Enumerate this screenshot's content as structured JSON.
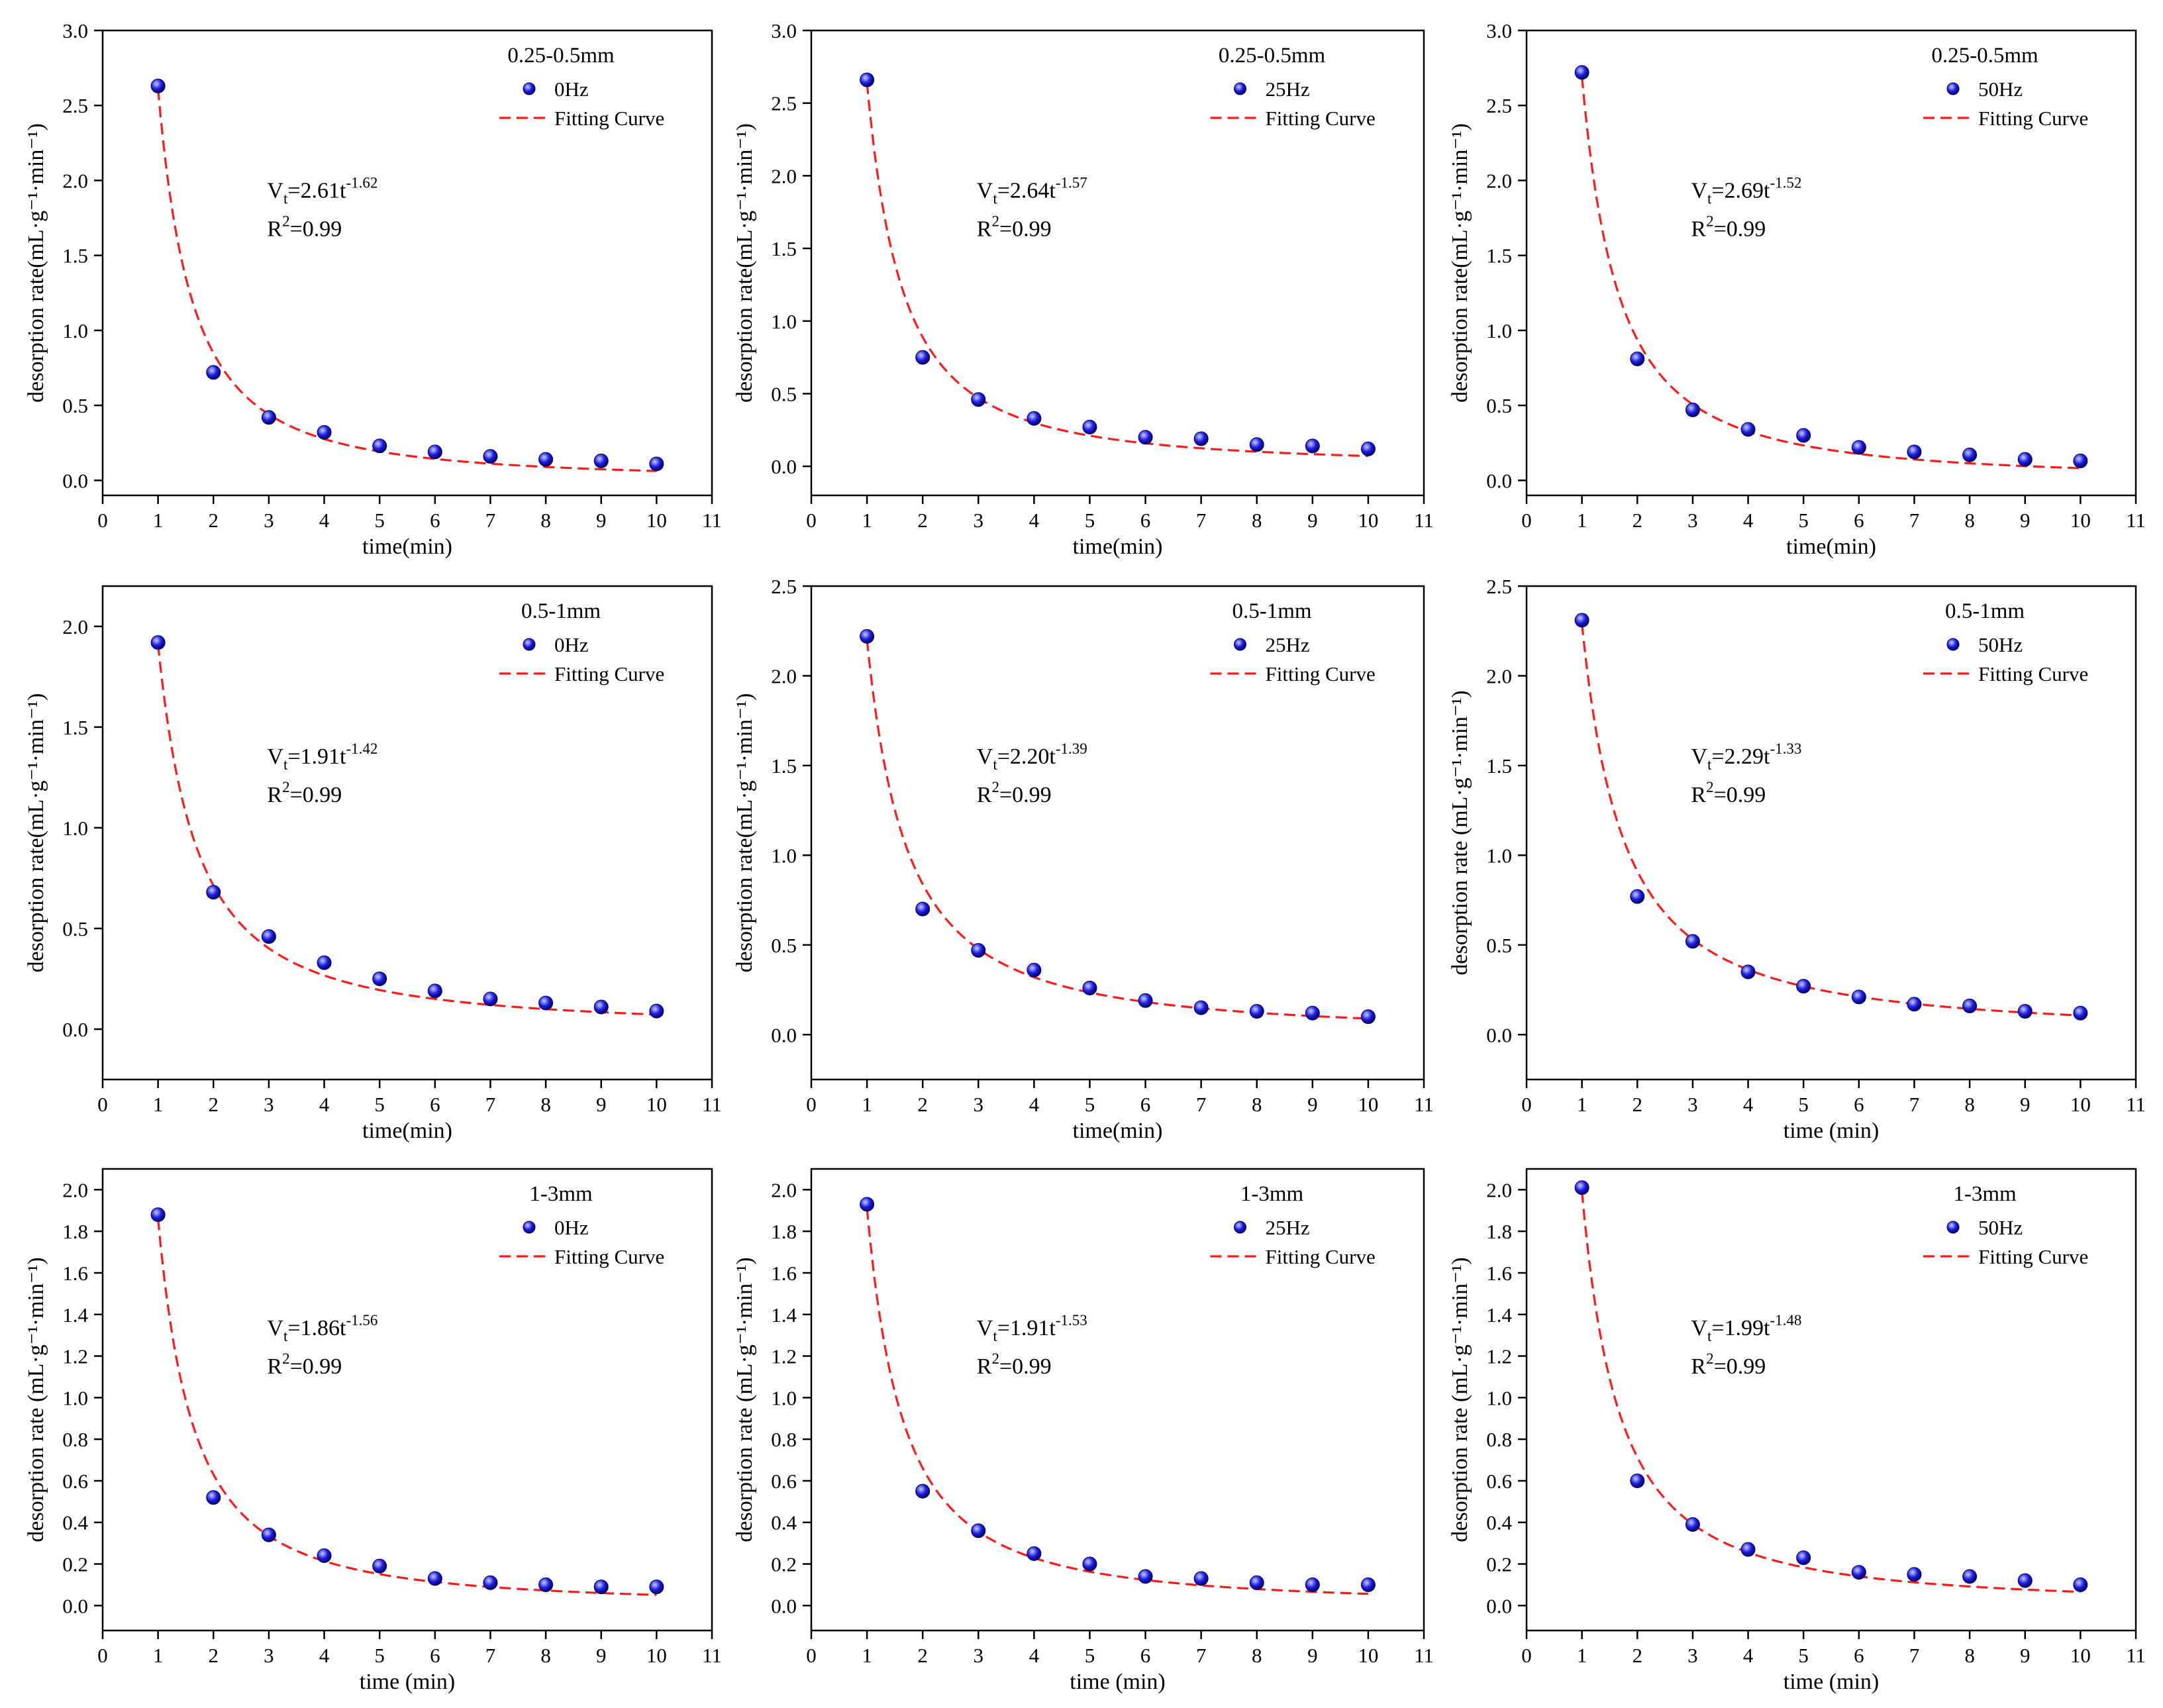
{
  "figure": {
    "colors": {
      "marker": "#1f1fe0",
      "marker_highlight": "#c8d0ff",
      "fit": "#ff1a1a",
      "axis": "#000000"
    }
  },
  "chart_data": [
    {
      "type": "scatter",
      "panel": "a1",
      "size_class": "0.25-0.5mm",
      "frequency": "0Hz",
      "xlabel": "time(min)",
      "ylabel": "desorption rate(mL·g⁻¹·min⁻¹)",
      "xlim": [
        0,
        11
      ],
      "ylim": [
        -0.1,
        3.0
      ],
      "xticks": [
        "0",
        "1",
        "2",
        "3",
        "4",
        "5",
        "6",
        "7",
        "8",
        "9",
        "10",
        "11"
      ],
      "yticks": [
        "0.0",
        "0.5",
        "1.0",
        "1.5",
        "2.0",
        "2.5",
        "3.0"
      ],
      "legend": {
        "title": "0.25-0.5mm",
        "marker_label": "0Hz",
        "line_label": "Fitting Curve"
      },
      "x": [
        1,
        2,
        3,
        4,
        5,
        6,
        7,
        8,
        9,
        10
      ],
      "y": [
        2.63,
        0.72,
        0.42,
        0.32,
        0.23,
        0.19,
        0.16,
        0.14,
        0.13,
        0.11
      ],
      "fit": {
        "a": 2.61,
        "b": 1.62,
        "equation_coef": "=2.61t",
        "equation_exp": "-1.62",
        "r2_value": "=0.99"
      }
    },
    {
      "type": "scatter",
      "panel": "a2",
      "size_class": "0.25-0.5mm",
      "frequency": "25Hz",
      "xlabel": "time(min)",
      "ylabel": "desorption rate(mL·g⁻¹·min⁻¹)",
      "xlim": [
        0,
        11
      ],
      "ylim": [
        -0.2,
        3.0
      ],
      "xticks": [
        "0",
        "1",
        "2",
        "3",
        "4",
        "5",
        "6",
        "7",
        "8",
        "9",
        "10",
        "11"
      ],
      "yticks": [
        "0.0",
        "0.5",
        "1.0",
        "1.5",
        "2.0",
        "2.5",
        "3.0"
      ],
      "legend": {
        "title": "0.25-0.5mm",
        "marker_label": "25Hz",
        "line_label": "Fitting Curve"
      },
      "x": [
        1,
        2,
        3,
        4,
        5,
        6,
        7,
        8,
        9,
        10
      ],
      "y": [
        2.66,
        0.75,
        0.46,
        0.33,
        0.27,
        0.2,
        0.19,
        0.15,
        0.14,
        0.12
      ],
      "fit": {
        "a": 2.64,
        "b": 1.57,
        "equation_coef": "=2.64t",
        "equation_exp": "-1.57",
        "r2_value": "=0.99"
      }
    },
    {
      "type": "scatter",
      "panel": "a3",
      "size_class": "0.25-0.5mm",
      "frequency": "50Hz",
      "xlabel": "time(min)",
      "ylabel": "desorption rate(mL·g⁻¹·min⁻¹)",
      "xlim": [
        0,
        11
      ],
      "ylim": [
        -0.1,
        3.0
      ],
      "xticks": [
        "0",
        "1",
        "2",
        "3",
        "4",
        "5",
        "6",
        "7",
        "8",
        "9",
        "10",
        "11"
      ],
      "yticks": [
        "0.0",
        "0.5",
        "1.0",
        "1.5",
        "2.0",
        "2.5",
        "3.0"
      ],
      "legend": {
        "title": "0.25-0.5mm",
        "marker_label": "50Hz",
        "line_label": "Fitting Curve"
      },
      "x": [
        1,
        2,
        3,
        4,
        5,
        6,
        7,
        8,
        9,
        10
      ],
      "y": [
        2.72,
        0.81,
        0.47,
        0.34,
        0.3,
        0.22,
        0.19,
        0.17,
        0.14,
        0.13
      ],
      "fit": {
        "a": 2.69,
        "b": 1.52,
        "equation_coef": "=2.69t",
        "equation_exp": "-1.52",
        "r2_value": "=0.99"
      }
    },
    {
      "type": "scatter",
      "panel": "b1",
      "size_class": "0.5-1mm",
      "frequency": "0Hz",
      "xlabel": "time(min)",
      "ylabel": "desorption rate(mL·g⁻¹·min⁻¹)",
      "xlim": [
        0,
        11
      ],
      "ylim": [
        -0.25,
        2.2
      ],
      "xticks": [
        "0",
        "1",
        "2",
        "3",
        "4",
        "5",
        "6",
        "7",
        "8",
        "9",
        "10",
        "11"
      ],
      "yticks": [
        "0.0",
        "0.5",
        "1.0",
        "1.5",
        "2.0"
      ],
      "legend": {
        "title": "0.5-1mm",
        "marker_label": "0Hz",
        "line_label": "Fitting Curve"
      },
      "x": [
        1,
        2,
        3,
        4,
        5,
        6,
        7,
        8,
        9,
        10
      ],
      "y": [
        1.92,
        0.68,
        0.46,
        0.33,
        0.25,
        0.19,
        0.15,
        0.13,
        0.11,
        0.09
      ],
      "fit": {
        "a": 1.91,
        "b": 1.42,
        "equation_coef": "=1.91t",
        "equation_exp": "-1.42",
        "r2_value": "=0.99"
      }
    },
    {
      "type": "scatter",
      "panel": "b2",
      "size_class": "0.5-1mm",
      "frequency": "25Hz",
      "xlabel": "time(min)",
      "ylabel": "desorption rate(mL·g⁻¹·min⁻¹)",
      "xlim": [
        0,
        11
      ],
      "ylim": [
        -0.25,
        2.5
      ],
      "xticks": [
        "0",
        "1",
        "2",
        "3",
        "4",
        "5",
        "6",
        "7",
        "8",
        "9",
        "10",
        "11"
      ],
      "yticks": [
        "0.0",
        "0.5",
        "1.0",
        "1.5",
        "2.0",
        "2.5"
      ],
      "legend": {
        "title": "0.5-1mm",
        "marker_label": "25Hz",
        "line_label": "Fitting Curve"
      },
      "x": [
        1,
        2,
        3,
        4,
        5,
        6,
        7,
        8,
        9,
        10
      ],
      "y": [
        2.22,
        0.7,
        0.47,
        0.36,
        0.26,
        0.19,
        0.15,
        0.13,
        0.12,
        0.1
      ],
      "fit": {
        "a": 2.2,
        "b": 1.39,
        "equation_coef": "=2.20t",
        "equation_exp": "-1.39",
        "r2_value": "=0.99"
      }
    },
    {
      "type": "scatter",
      "panel": "b3",
      "size_class": "0.5-1mm",
      "frequency": "50Hz",
      "xlabel": "time (min)",
      "ylabel": "desorption rate (mL·g⁻¹·min⁻¹)",
      "xlim": [
        0,
        11
      ],
      "ylim": [
        -0.25,
        2.5
      ],
      "xticks": [
        "0",
        "1",
        "2",
        "3",
        "4",
        "5",
        "6",
        "7",
        "8",
        "9",
        "10",
        "11"
      ],
      "yticks": [
        "0.0",
        "0.5",
        "1.0",
        "1.5",
        "2.0",
        "2.5"
      ],
      "legend": {
        "title": "0.5-1mm",
        "marker_label": "50Hz",
        "line_label": "Fitting Curve"
      },
      "x": [
        1,
        2,
        3,
        4,
        5,
        6,
        7,
        8,
        9,
        10
      ],
      "y": [
        2.31,
        0.77,
        0.52,
        0.35,
        0.27,
        0.21,
        0.17,
        0.16,
        0.13,
        0.12
      ],
      "fit": {
        "a": 2.29,
        "b": 1.33,
        "equation_coef": "=2.29t",
        "equation_exp": "-1.33",
        "r2_value": "=0.99"
      }
    },
    {
      "type": "scatter",
      "panel": "c1",
      "size_class": "1-3mm",
      "frequency": "0Hz",
      "xlabel": "time (min)",
      "ylabel": "desorption rate (mL·g⁻¹·min⁻¹)",
      "xlim": [
        0,
        11
      ],
      "ylim": [
        -0.12,
        2.1
      ],
      "xticks": [
        "0",
        "1",
        "2",
        "3",
        "4",
        "5",
        "6",
        "7",
        "8",
        "9",
        "10",
        "11"
      ],
      "yticks": [
        "0.0",
        "0.2",
        "0.4",
        "0.6",
        "0.8",
        "1.0",
        "1.2",
        "1.4",
        "1.6",
        "1.8",
        "2.0"
      ],
      "legend": {
        "title": "1-3mm",
        "marker_label": "0Hz",
        "line_label": "Fitting Curve"
      },
      "x": [
        1,
        2,
        3,
        4,
        5,
        6,
        7,
        8,
        9,
        10
      ],
      "y": [
        1.88,
        0.52,
        0.34,
        0.24,
        0.19,
        0.13,
        0.11,
        0.1,
        0.09,
        0.09
      ],
      "fit": {
        "a": 1.86,
        "b": 1.56,
        "equation_coef": "=1.86t",
        "equation_exp": "-1.56",
        "r2_value": "=0.99"
      }
    },
    {
      "type": "scatter",
      "panel": "c2",
      "size_class": "1-3mm",
      "frequency": "25Hz",
      "xlabel": "time (min)",
      "ylabel": "desorption rate (mL·g⁻¹·min⁻¹)",
      "xlim": [
        0,
        11
      ],
      "ylim": [
        -0.12,
        2.1
      ],
      "xticks": [
        "0",
        "1",
        "2",
        "3",
        "4",
        "5",
        "6",
        "7",
        "8",
        "9",
        "10",
        "11"
      ],
      "yticks": [
        "0.0",
        "0.2",
        "0.4",
        "0.6",
        "0.8",
        "1.0",
        "1.2",
        "1.4",
        "1.6",
        "1.8",
        "2.0"
      ],
      "legend": {
        "title": "1-3mm",
        "marker_label": "25Hz",
        "line_label": "Fitting Curve"
      },
      "x": [
        1,
        2,
        3,
        4,
        5,
        6,
        7,
        8,
        9,
        10
      ],
      "y": [
        1.93,
        0.55,
        0.36,
        0.25,
        0.2,
        0.14,
        0.13,
        0.11,
        0.1,
        0.1
      ],
      "fit": {
        "a": 1.91,
        "b": 1.53,
        "equation_coef": "=1.91t",
        "equation_exp": "-1.53",
        "r2_value": "=0.99"
      }
    },
    {
      "type": "scatter",
      "panel": "c3",
      "size_class": "1-3mm",
      "frequency": "50Hz",
      "xlabel": "time (min)",
      "ylabel": "desorption rate (mL·g⁻¹·min⁻¹)",
      "xlim": [
        0,
        11
      ],
      "ylim": [
        -0.12,
        2.1
      ],
      "xticks": [
        "0",
        "1",
        "2",
        "3",
        "4",
        "5",
        "6",
        "7",
        "8",
        "9",
        "10",
        "11"
      ],
      "yticks": [
        "0.0",
        "0.2",
        "0.4",
        "0.6",
        "0.8",
        "1.0",
        "1.2",
        "1.4",
        "1.6",
        "1.8",
        "2.0"
      ],
      "legend": {
        "title": "1-3mm",
        "marker_label": "50Hz",
        "line_label": "Fitting Curve"
      },
      "x": [
        1,
        2,
        3,
        4,
        5,
        6,
        7,
        8,
        9,
        10
      ],
      "y": [
        2.01,
        0.6,
        0.39,
        0.27,
        0.23,
        0.16,
        0.15,
        0.14,
        0.12,
        0.1
      ],
      "fit": {
        "a": 1.99,
        "b": 1.48,
        "equation_coef": "=1.99t",
        "equation_exp": "-1.48",
        "r2_value": "=0.99"
      }
    }
  ]
}
